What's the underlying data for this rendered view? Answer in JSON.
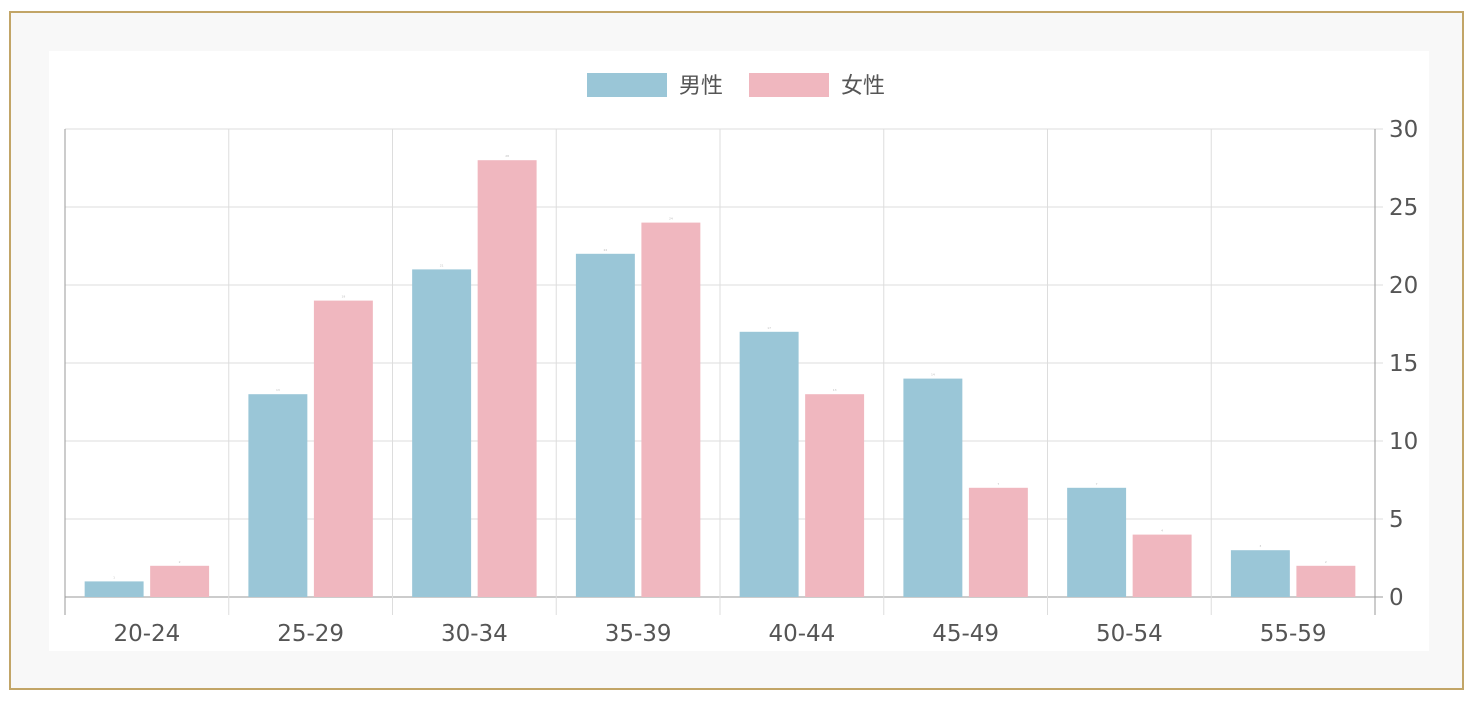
{
  "chart_data": {
    "type": "bar",
    "categories": [
      "20-24",
      "25-29",
      "30-34",
      "35-39",
      "40-44",
      "45-49",
      "50-54",
      "55-59"
    ],
    "series": [
      {
        "name": "男性",
        "values": [
          1,
          13,
          21,
          22,
          17,
          14,
          7,
          3
        ],
        "color": "#9ac6d7"
      },
      {
        "name": "女性",
        "values": [
          2,
          19,
          28,
          24,
          13,
          7,
          4,
          2
        ],
        "color": "#f0b7bf"
      }
    ],
    "ylim": [
      0,
      30
    ],
    "yticks": [
      0,
      5,
      10,
      15,
      20,
      25,
      30
    ],
    "y_axis_side": "right",
    "legend_position": "top-center",
    "grid": true,
    "colors": {
      "frame_border": "#c2a567",
      "grid": "#dddddd",
      "axis": "#999999",
      "text": "#555555"
    }
  }
}
